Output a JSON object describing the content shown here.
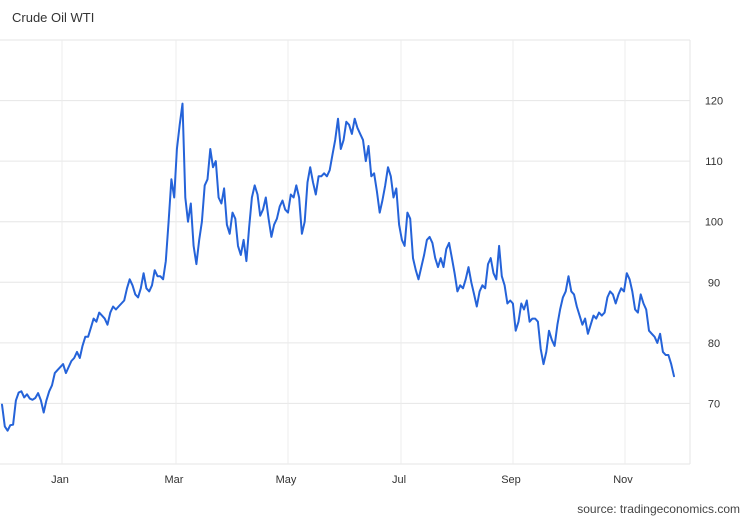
{
  "chart_data": {
    "type": "line",
    "title": "Crude Oil WTI",
    "source": "source: tradingeconomics.com",
    "x_ticks": [
      "Jan",
      "Mar",
      "May",
      "Jul",
      "Sep",
      "Nov"
    ],
    "y_ticks": [
      70,
      80,
      90,
      100,
      110,
      120
    ],
    "ylim": [
      60,
      130
    ],
    "grid": true,
    "y_axis_position": "right",
    "line_color": "#2563d9",
    "series": [
      {
        "values": [
          69.8,
          66.2,
          65.5,
          66.4,
          66.5,
          70.5,
          71.8,
          72.0,
          71.0,
          71.5,
          70.8,
          70.6,
          70.9,
          71.7,
          70.5,
          68.5,
          70.5,
          72.0,
          73.0,
          75.0,
          75.5,
          76.0,
          76.5,
          75.0,
          76.0,
          77.0,
          77.5,
          78.5,
          77.5,
          79.5,
          81.0,
          81.0,
          82.5,
          84.0,
          83.5,
          85.0,
          84.5,
          84.0,
          83.0,
          85.0,
          86.0,
          85.5,
          86.0,
          86.5,
          87.0,
          89.0,
          90.5,
          89.5,
          88.0,
          87.5,
          89.0,
          91.5,
          89.0,
          88.5,
          89.5,
          92.0,
          91.0,
          91.0,
          90.5,
          93.5,
          100.0,
          107.0,
          104.0,
          112.0,
          116.0,
          119.5,
          104.0,
          100.0,
          103.0,
          96.0,
          93.0,
          97.0,
          100.0,
          106.0,
          107.0,
          112.0,
          109.0,
          110.0,
          104.0,
          103.0,
          105.5,
          99.5,
          98.0,
          101.5,
          100.5,
          96.0,
          94.5,
          97.0,
          93.5,
          99.0,
          104.0,
          106.0,
          104.5,
          101.0,
          102.0,
          104.0,
          100.5,
          97.5,
          99.5,
          100.5,
          102.5,
          103.5,
          102.0,
          101.5,
          104.5,
          104.0,
          106.0,
          104.0,
          98.0,
          100.0,
          106.5,
          109.0,
          106.5,
          104.5,
          107.5,
          107.5,
          108.0,
          107.5,
          108.5,
          111.0,
          113.5,
          117.0,
          112.0,
          113.5,
          116.5,
          116.0,
          114.5,
          117.0,
          115.5,
          114.5,
          113.5,
          110.0,
          112.5,
          107.5,
          108.0,
          105.0,
          101.5,
          103.5,
          106.0,
          109.0,
          107.5,
          104.0,
          105.5,
          99.5,
          97.0,
          96.0,
          101.5,
          100.5,
          94.0,
          92.0,
          90.5,
          92.5,
          94.5,
          97.0,
          97.5,
          96.5,
          94.0,
          92.5,
          94.0,
          92.5,
          95.5,
          96.5,
          94.0,
          91.5,
          88.5,
          89.5,
          89.0,
          90.5,
          92.5,
          90.0,
          88.0,
          86.0,
          88.5,
          89.5,
          89.0,
          93.0,
          94.0,
          91.5,
          90.5,
          96.0,
          91.0,
          89.5,
          86.5,
          87.0,
          86.5,
          82.0,
          83.5,
          86.5,
          85.5,
          87.0,
          83.5,
          84.0,
          84.0,
          83.5,
          79.0,
          76.5,
          78.5,
          82.0,
          80.5,
          79.5,
          83.0,
          85.5,
          87.5,
          88.5,
          91.0,
          88.5,
          88.0,
          86.0,
          84.5,
          83.0,
          84.0,
          81.5,
          83.0,
          84.5,
          84.0,
          85.0,
          84.5,
          85.0,
          87.5,
          88.5,
          88.0,
          86.5,
          88.0,
          89.0,
          88.5,
          91.5,
          90.5,
          88.5,
          85.5,
          85.0,
          88.0,
          86.5,
          85.5,
          82.0,
          81.5,
          81.0,
          80.0,
          81.5,
          78.5,
          78.0,
          78.0,
          76.5,
          74.5
        ]
      }
    ]
  }
}
